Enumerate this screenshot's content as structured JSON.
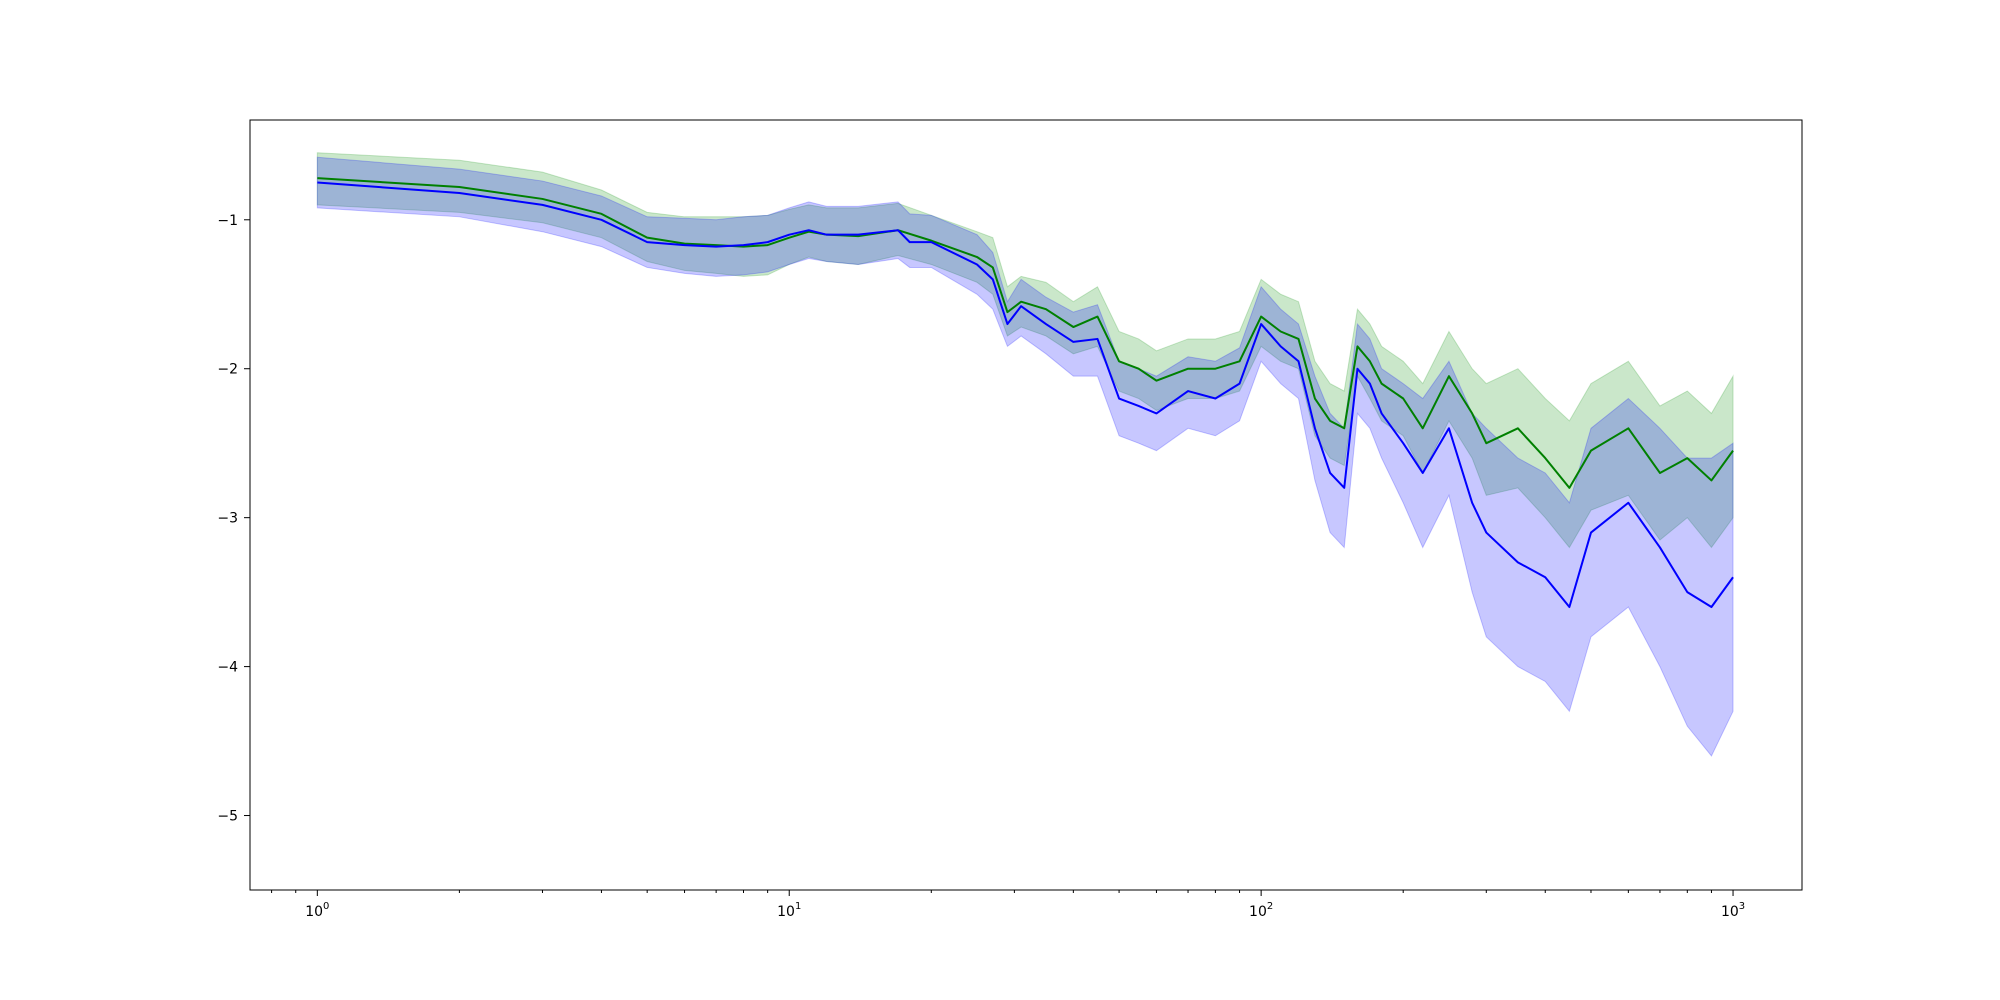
{
  "chart_data": {
    "type": "area",
    "title": "",
    "xlabel": "",
    "ylabel": "",
    "x_scale": "log",
    "xlim": [
      0.72,
      1400
    ],
    "ylim": [
      -5.5,
      -0.33
    ],
    "grid": false,
    "legend": "none",
    "x_tick_labels": [
      {
        "value": 1,
        "base": "10",
        "exp": "0"
      },
      {
        "value": 10,
        "base": "10",
        "exp": "1"
      },
      {
        "value": 100,
        "base": "10",
        "exp": "2"
      },
      {
        "value": 1000,
        "base": "10",
        "exp": "3"
      }
    ],
    "y_ticks": [
      -1,
      -2,
      -3,
      -4,
      -5
    ],
    "y_tick_labels": [
      "−1",
      "−2",
      "−3",
      "−4",
      "−5"
    ],
    "series": [
      {
        "color": "#008000",
        "band_color": "#2ca02c",
        "band_opacity": 0.25,
        "x": [
          1,
          2,
          3,
          4,
          5,
          6,
          7,
          8,
          9,
          10,
          11,
          12,
          14,
          17,
          20,
          25,
          27,
          29,
          31,
          35,
          40,
          45,
          50,
          55,
          60,
          70,
          80,
          90,
          100,
          110,
          120,
          130,
          140,
          150,
          160,
          170,
          180,
          200,
          220,
          250,
          280,
          300,
          350,
          400,
          450,
          500,
          600,
          700,
          800,
          900,
          1000
        ],
        "y": [
          -0.72,
          -0.78,
          -0.86,
          -0.96,
          -1.12,
          -1.16,
          -1.17,
          -1.18,
          -1.17,
          -1.12,
          -1.08,
          -1.1,
          -1.11,
          -1.07,
          -1.14,
          -1.25,
          -1.32,
          -1.62,
          -1.55,
          -1.6,
          -1.72,
          -1.65,
          -1.95,
          -2.0,
          -2.08,
          -2.0,
          -2.0,
          -1.95,
          -1.65,
          -1.75,
          -1.8,
          -2.2,
          -2.35,
          -2.4,
          -1.85,
          -1.95,
          -2.1,
          -2.2,
          -2.4,
          -2.05,
          -2.3,
          -2.5,
          -2.4,
          -2.6,
          -2.8,
          -2.55,
          -2.4,
          -2.7,
          -2.6,
          -2.75,
          -2.55
        ],
        "lower": [
          -0.9,
          -0.95,
          -1.02,
          -1.12,
          -1.28,
          -1.34,
          -1.36,
          -1.38,
          -1.37,
          -1.3,
          -1.25,
          -1.28,
          -1.3,
          -1.24,
          -1.3,
          -1.42,
          -1.5,
          -1.78,
          -1.72,
          -1.78,
          -1.9,
          -1.85,
          -2.15,
          -2.2,
          -2.28,
          -2.2,
          -2.2,
          -2.15,
          -1.85,
          -1.95,
          -2.0,
          -2.45,
          -2.6,
          -2.65,
          -2.05,
          -2.2,
          -2.35,
          -2.45,
          -2.7,
          -2.35,
          -2.6,
          -2.85,
          -2.8,
          -3.0,
          -3.2,
          -2.95,
          -2.85,
          -3.15,
          -3.0,
          -3.2,
          -3.0
        ],
        "upper": [
          -0.55,
          -0.6,
          -0.68,
          -0.8,
          -0.95,
          -0.98,
          -0.98,
          -0.98,
          -0.97,
          -0.93,
          -0.9,
          -0.92,
          -0.92,
          -0.89,
          -0.97,
          -1.08,
          -1.12,
          -1.45,
          -1.38,
          -1.42,
          -1.55,
          -1.45,
          -1.75,
          -1.8,
          -1.88,
          -1.8,
          -1.8,
          -1.75,
          -1.4,
          -1.5,
          -1.55,
          -1.95,
          -2.1,
          -2.15,
          -1.6,
          -1.7,
          -1.85,
          -1.95,
          -2.1,
          -1.75,
          -2.0,
          -2.1,
          -2.0,
          -2.2,
          -2.35,
          -2.1,
          -1.95,
          -2.25,
          -2.15,
          -2.3,
          -2.05
        ]
      },
      {
        "color": "#0000ff",
        "band_color": "#0000ff",
        "band_opacity": 0.22,
        "x": [
          1,
          2,
          3,
          4,
          5,
          6,
          7,
          8,
          9,
          10,
          11,
          12,
          14,
          17,
          18,
          20,
          25,
          27,
          29,
          31,
          35,
          40,
          45,
          50,
          55,
          60,
          70,
          80,
          90,
          100,
          110,
          120,
          130,
          140,
          150,
          160,
          170,
          180,
          200,
          220,
          250,
          280,
          300,
          350,
          400,
          450,
          500,
          600,
          700,
          800,
          900,
          1000
        ],
        "y": [
          -0.75,
          -0.82,
          -0.9,
          -1.0,
          -1.15,
          -1.17,
          -1.18,
          -1.17,
          -1.15,
          -1.1,
          -1.07,
          -1.1,
          -1.1,
          -1.07,
          -1.15,
          -1.15,
          -1.3,
          -1.4,
          -1.7,
          -1.58,
          -1.7,
          -1.82,
          -1.8,
          -2.2,
          -2.25,
          -2.3,
          -2.15,
          -2.2,
          -2.1,
          -1.7,
          -1.85,
          -1.95,
          -2.4,
          -2.7,
          -2.8,
          -2.0,
          -2.1,
          -2.3,
          -2.5,
          -2.7,
          -2.4,
          -2.9,
          -3.1,
          -3.3,
          -3.4,
          -3.6,
          -3.1,
          -2.9,
          -3.2,
          -3.5,
          -3.6,
          -3.4
        ],
        "lower": [
          -0.92,
          -0.98,
          -1.08,
          -1.18,
          -1.32,
          -1.36,
          -1.38,
          -1.37,
          -1.35,
          -1.3,
          -1.26,
          -1.28,
          -1.3,
          -1.26,
          -1.32,
          -1.32,
          -1.5,
          -1.6,
          -1.85,
          -1.78,
          -1.9,
          -2.05,
          -2.05,
          -2.45,
          -2.5,
          -2.55,
          -2.4,
          -2.45,
          -2.35,
          -1.95,
          -2.1,
          -2.2,
          -2.75,
          -3.1,
          -3.2,
          -2.3,
          -2.4,
          -2.6,
          -2.9,
          -3.2,
          -2.85,
          -3.5,
          -3.8,
          -4.0,
          -4.1,
          -4.3,
          -3.8,
          -3.6,
          -4.0,
          -4.4,
          -4.6,
          -4.3
        ],
        "upper": [
          -0.58,
          -0.66,
          -0.74,
          -0.84,
          -0.98,
          -0.99,
          -1.0,
          -0.98,
          -0.97,
          -0.92,
          -0.88,
          -0.91,
          -0.91,
          -0.88,
          -0.96,
          -0.97,
          -1.1,
          -1.22,
          -1.55,
          -1.4,
          -1.52,
          -1.62,
          -1.57,
          -1.95,
          -2.0,
          -2.05,
          -1.92,
          -1.95,
          -1.86,
          -1.45,
          -1.6,
          -1.7,
          -2.05,
          -2.3,
          -2.4,
          -1.7,
          -1.8,
          -2.0,
          -2.1,
          -2.2,
          -1.95,
          -2.3,
          -2.4,
          -2.6,
          -2.7,
          -2.9,
          -2.4,
          -2.2,
          -2.4,
          -2.6,
          -2.6,
          -2.5
        ]
      }
    ]
  }
}
